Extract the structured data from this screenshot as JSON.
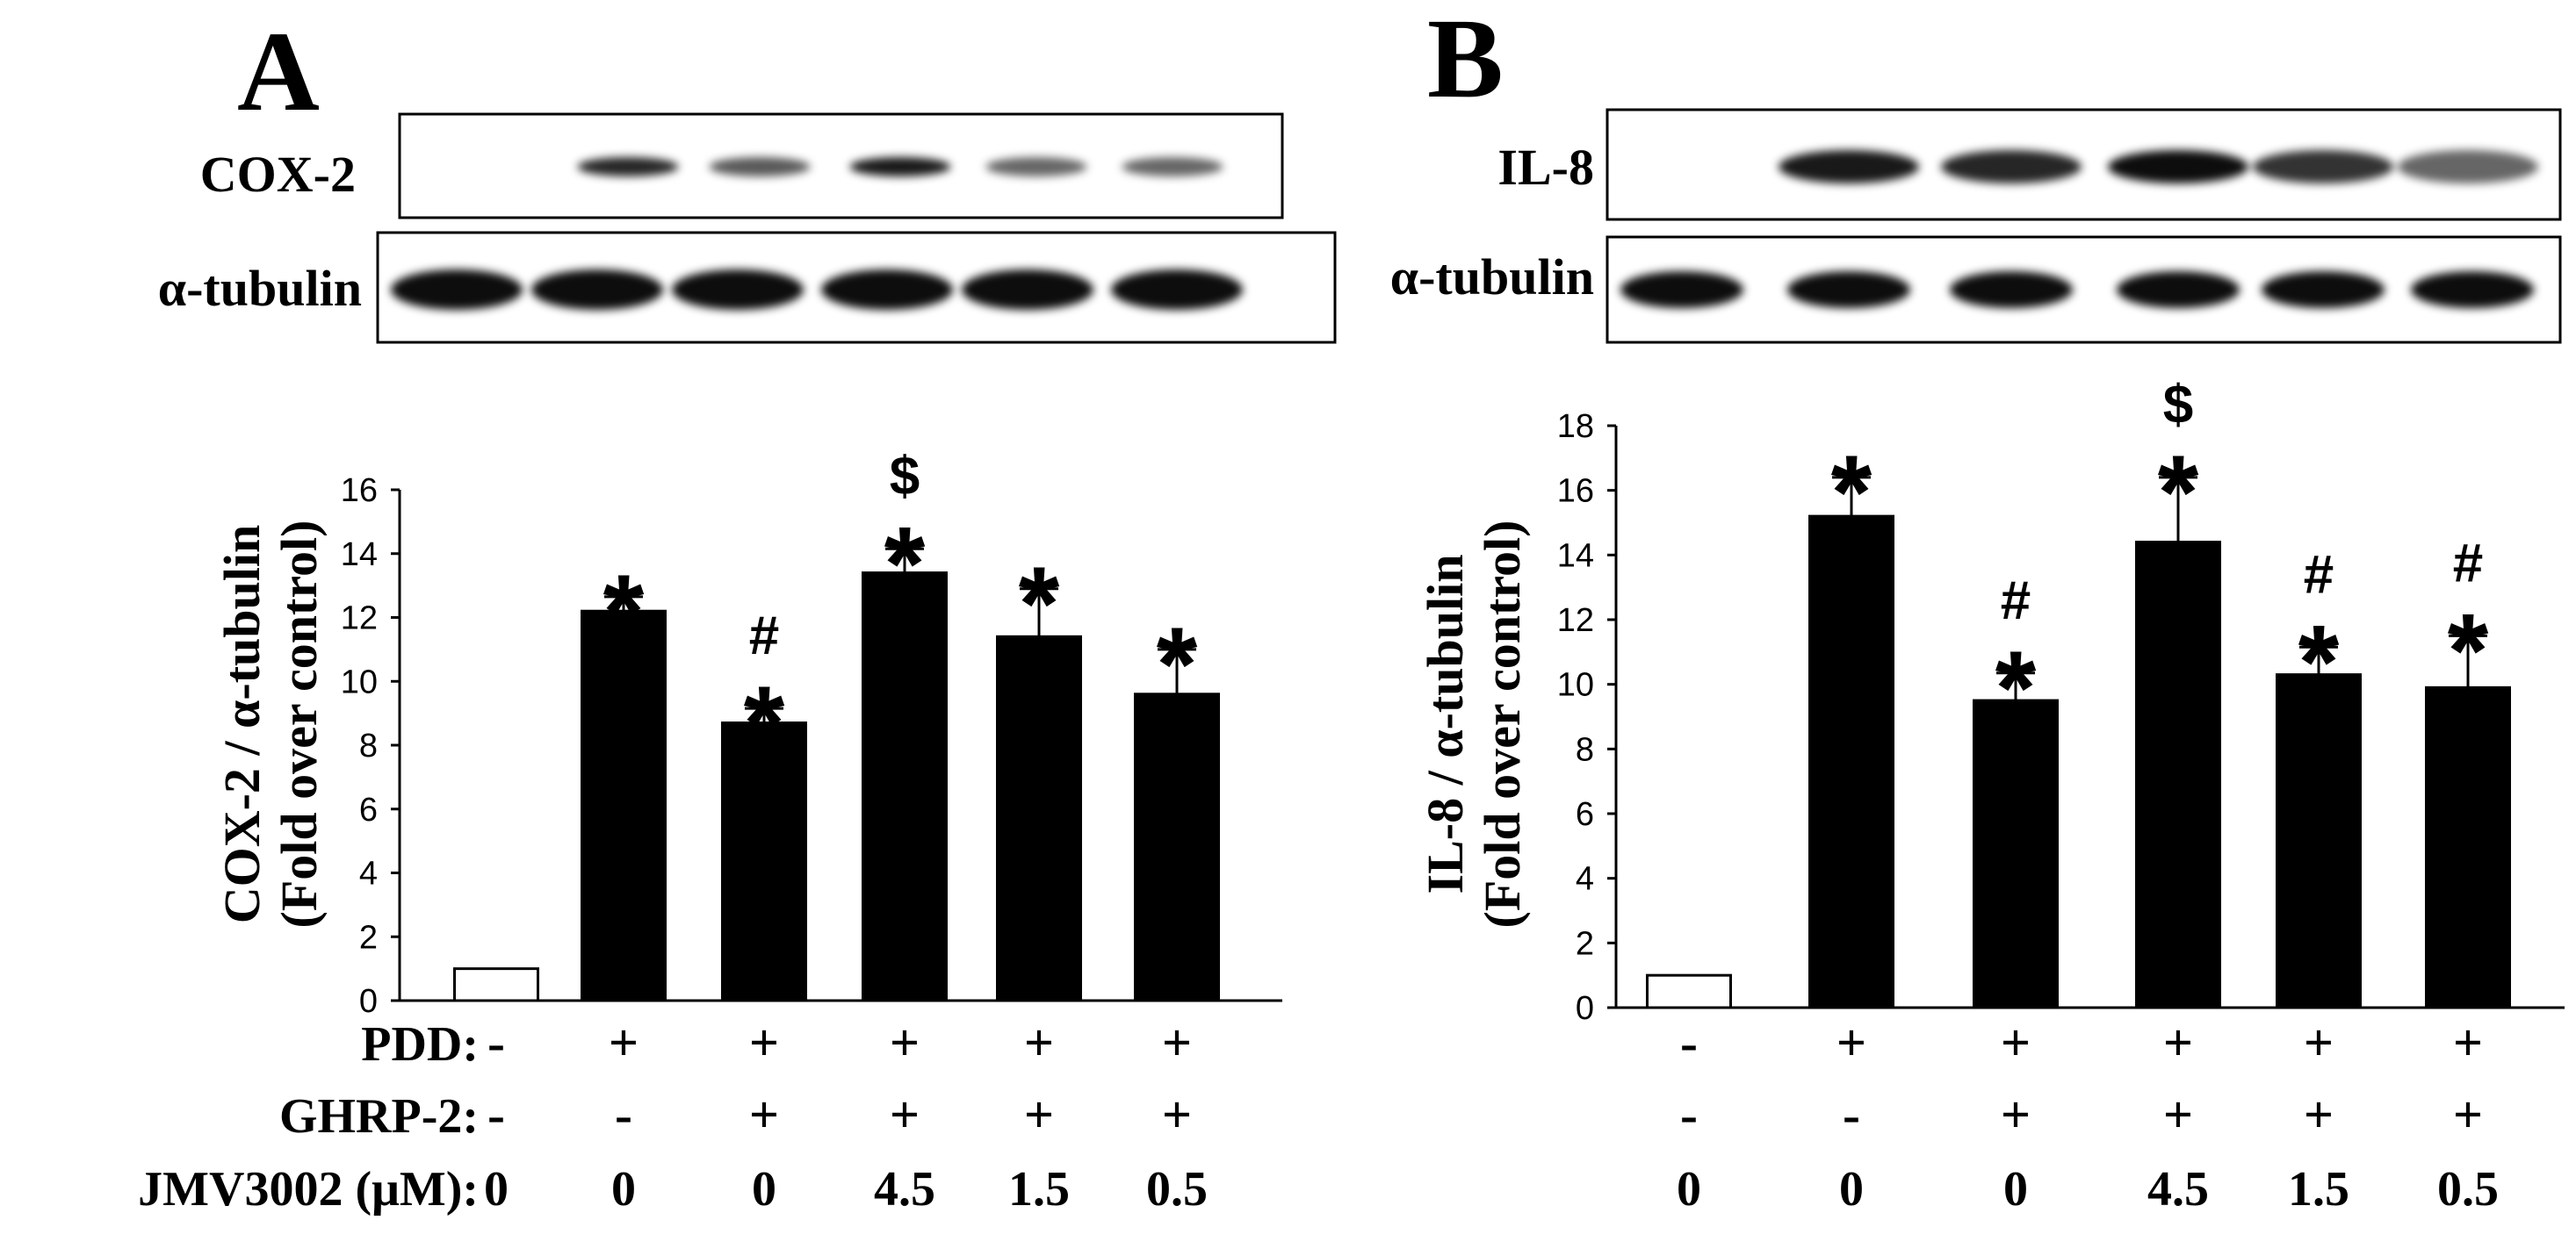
{
  "panels": [
    {
      "letter": "A",
      "blot_labels": [
        "COX-2",
        "α-tubulin"
      ],
      "ylabel_line1": "COX-2 / α-tubulin",
      "ylabel_line2": "(Fold over control)",
      "row_labels": [
        "PDD:",
        "GHRP-2:",
        "JMV3002 (μM):"
      ]
    },
    {
      "letter": "B",
      "blot_labels": [
        "IL-8",
        "α-tubulin"
      ],
      "ylabel_line1": "IL-8 / α-tubulin",
      "ylabel_line2": "(Fold over control)",
      "row_labels": []
    }
  ],
  "conditions": {
    "pdd": [
      "-",
      "+",
      "+",
      "+",
      "+",
      "+"
    ],
    "ghrp2": [
      "-",
      "-",
      "+",
      "+",
      "+",
      "+"
    ],
    "jmv3002": [
      "0",
      "0",
      "0",
      "4.5",
      "1.5",
      "0.5"
    ]
  },
  "colors": {
    "control_bar": "#ffffff",
    "treated_bar": "#000000",
    "axis": "#000000"
  },
  "chart_data": [
    {
      "type": "bar",
      "ylim": [
        0,
        16
      ],
      "yticks": [
        0,
        2,
        4,
        6,
        8,
        10,
        12,
        14,
        16
      ],
      "values": [
        1.0,
        12.2,
        8.7,
        13.4,
        11.4,
        9.6
      ],
      "errors": [
        0,
        0.45,
        0.45,
        0.75,
        1.5,
        1.4
      ],
      "annotations": [
        [],
        [
          "*"
        ],
        [
          "*",
          "#"
        ],
        [
          "*",
          "$"
        ],
        [
          "*"
        ],
        [
          "*"
        ]
      ]
    },
    {
      "type": "bar",
      "ylim": [
        0,
        18
      ],
      "yticks": [
        0,
        2,
        4,
        6,
        8,
        10,
        12,
        14,
        16,
        18
      ],
      "values": [
        1.0,
        15.2,
        9.5,
        14.4,
        10.3,
        9.9
      ],
      "errors": [
        0,
        1.2,
        0.85,
        2.0,
        0.85,
        1.6
      ],
      "annotations": [
        [],
        [
          "*"
        ],
        [
          "*",
          "#"
        ],
        [
          "*",
          "$"
        ],
        [
          "*",
          "#"
        ],
        [
          "*",
          "#"
        ]
      ]
    }
  ]
}
